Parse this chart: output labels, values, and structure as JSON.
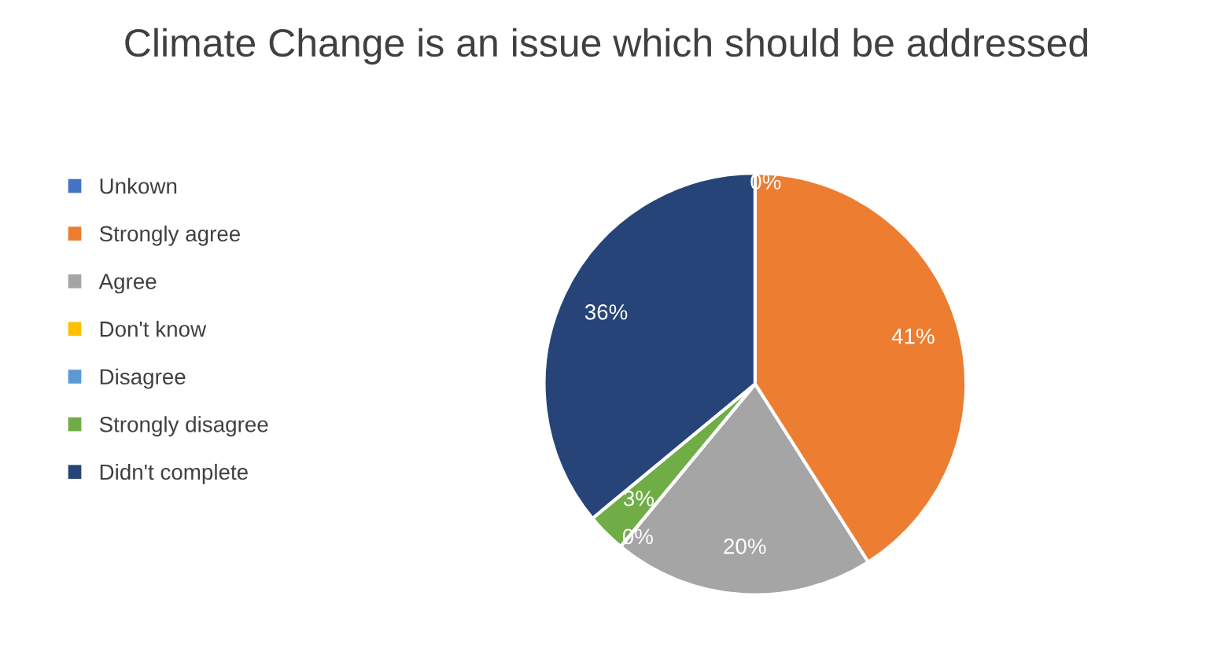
{
  "chart_data": {
    "type": "pie",
    "title": "Climate Change is an issue which should be addressed",
    "categories": [
      "Unkown",
      "Strongly agree",
      "Agree",
      "Don't know",
      "Disagree",
      "Strongly disagree",
      "Didn't complete"
    ],
    "values": [
      0,
      41,
      20,
      0,
      0,
      3,
      36
    ],
    "colors": [
      "#4472c4",
      "#ed7d31",
      "#a5a5a5",
      "#ffc000",
      "#5b9bd5",
      "#70ad47",
      "#264478"
    ],
    "value_labels": [
      "0%",
      "41%",
      "20%",
      null,
      "0%",
      "3%",
      "36%"
    ],
    "legend": "left"
  }
}
